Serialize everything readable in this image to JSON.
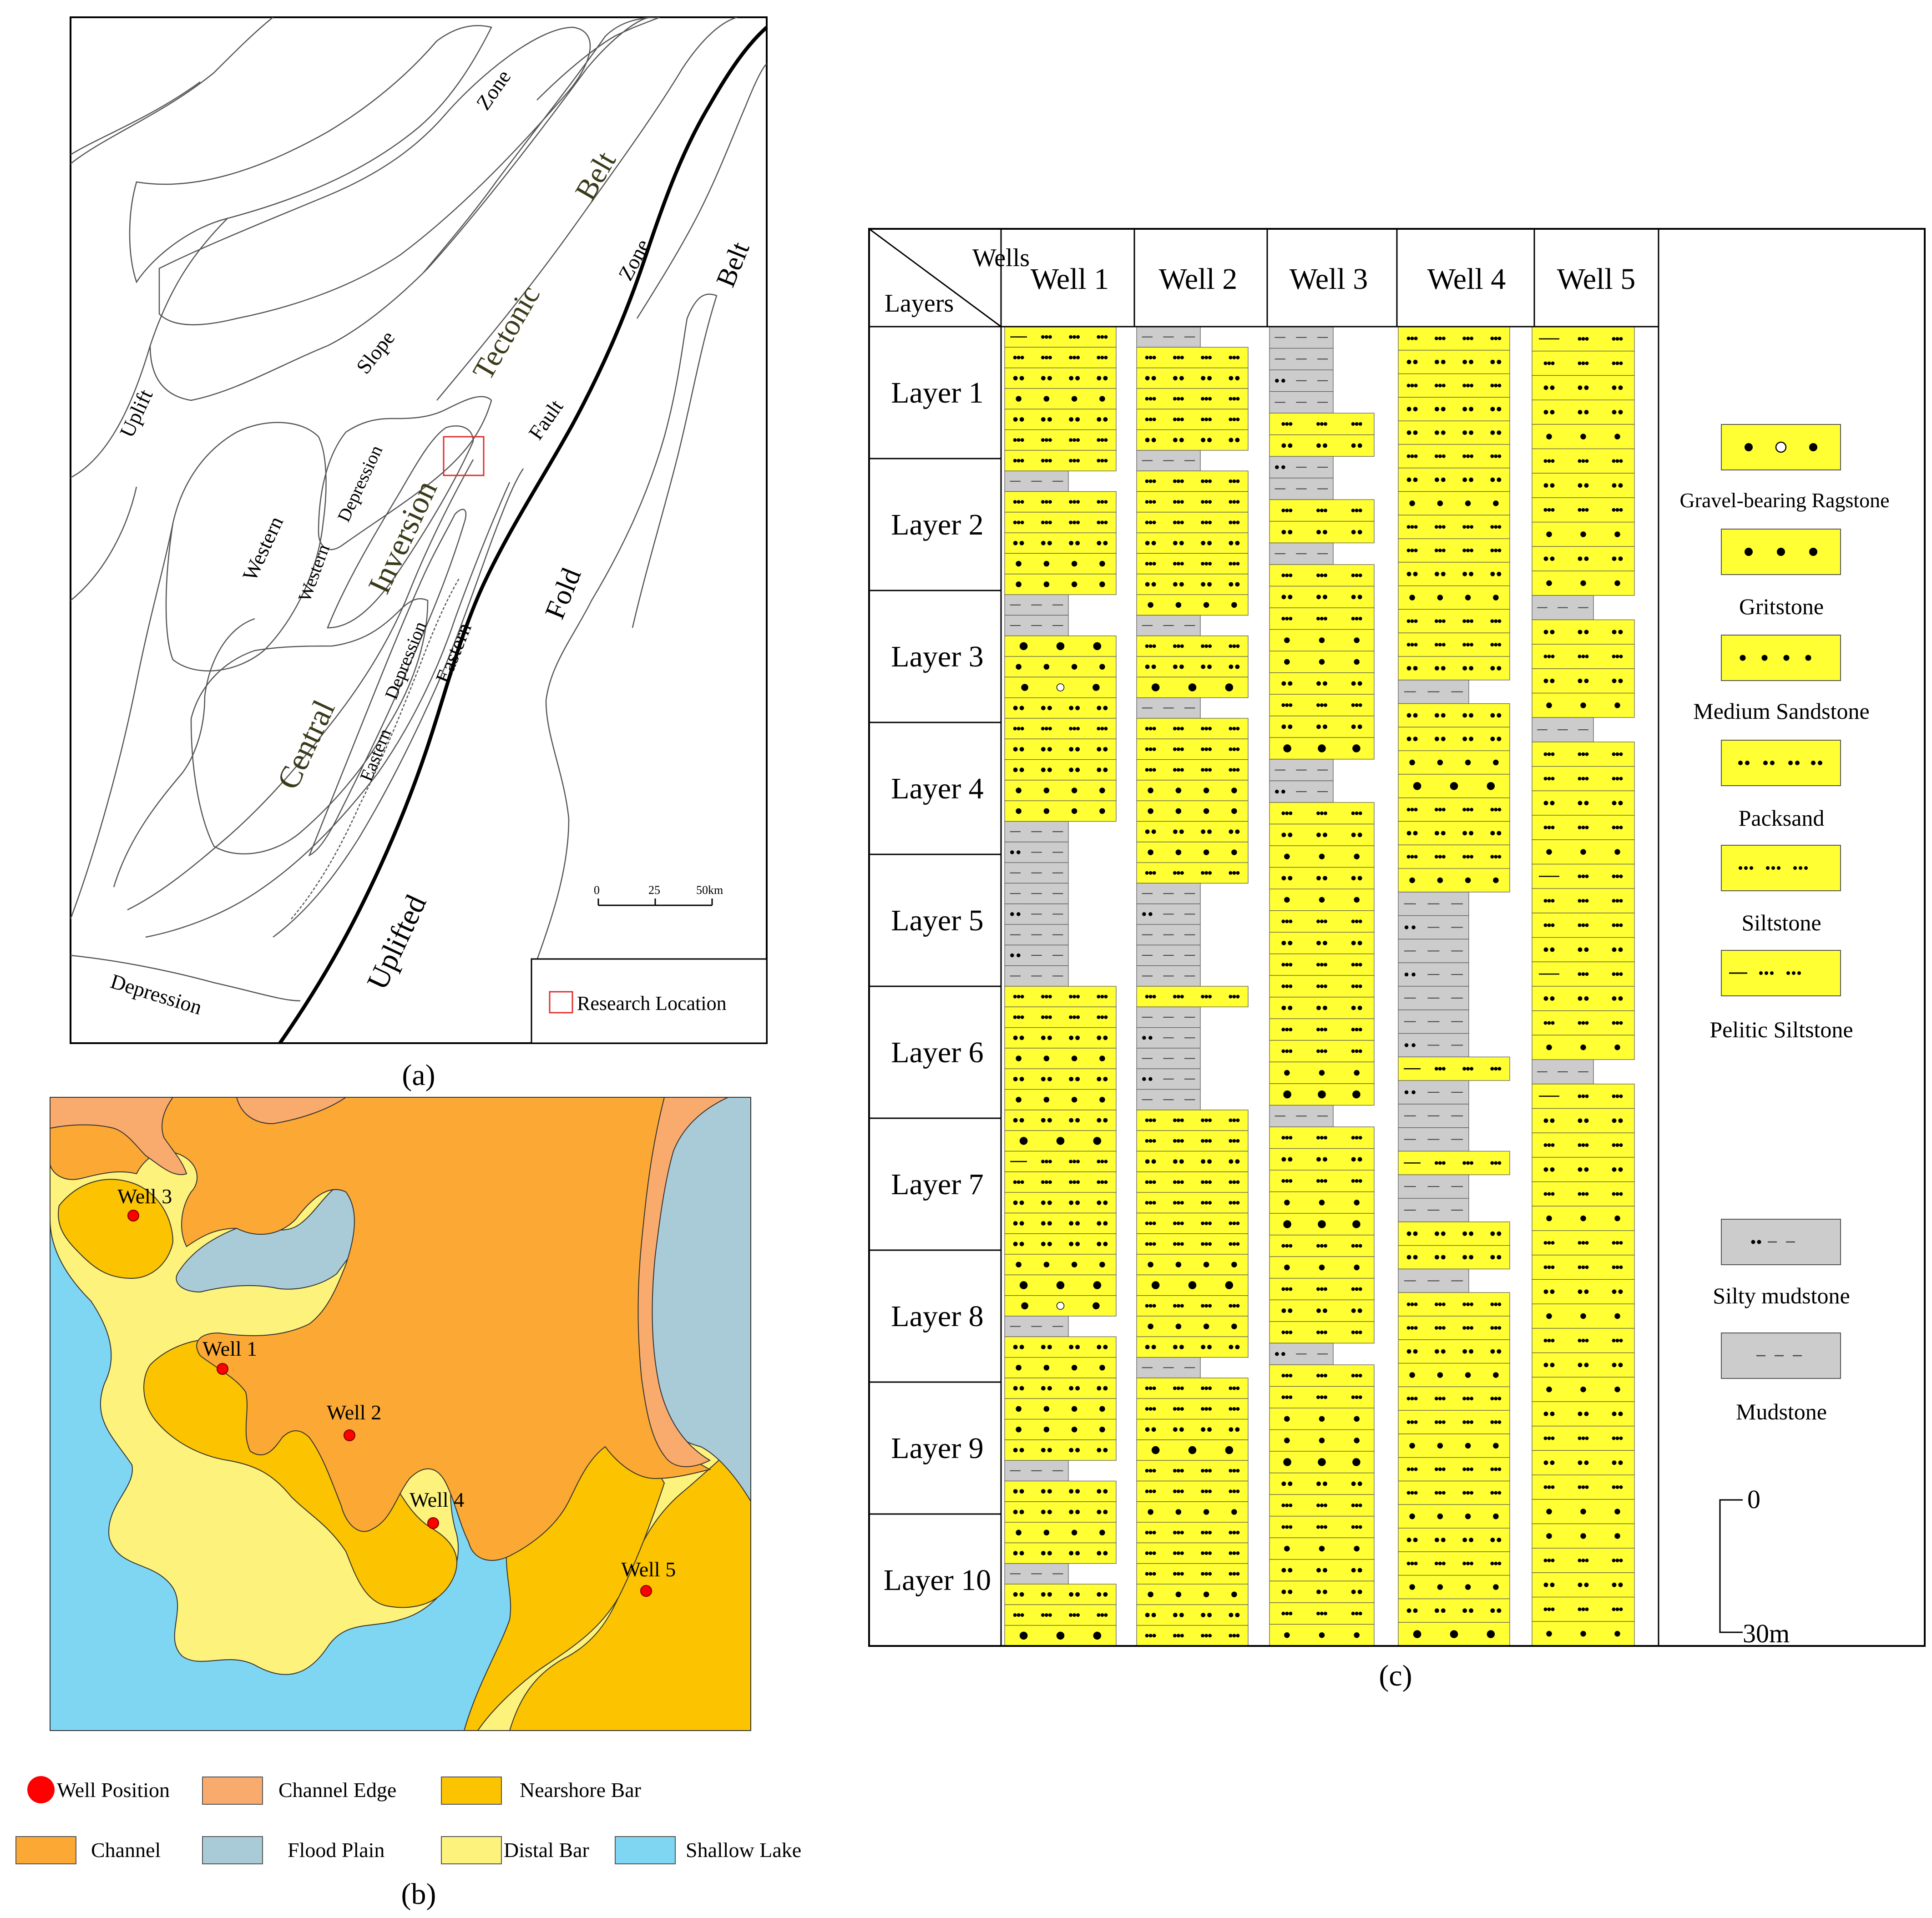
{
  "panel_a": {
    "caption": "(a)",
    "labels": {
      "zone_top": "Zone",
      "belt_top": "Belt",
      "tectonic": "Tectonic",
      "slope": "Slope",
      "uplift": "Uplift",
      "depression_w": "Depression",
      "western_inner": "Western",
      "western_outer": "Western",
      "inversion": "Inversion",
      "fault": "Fault",
      "zone_right": "Zone",
      "belt_right": "Belt",
      "fold": "Fold",
      "central": "Central",
      "eastern_outer": "Eastern",
      "depression_e": "Depression",
      "eastern_inner": "Eastern",
      "uplifted": "Uplifted",
      "depression_bottom": "Depression"
    },
    "scale": {
      "t0": "0",
      "t1": "25",
      "t2": "50km"
    },
    "legend": {
      "research_location": "Research Location"
    },
    "colors": {
      "line": "#555555",
      "fault": "#000000",
      "research_box": "#e03030"
    }
  },
  "panel_b": {
    "caption": "(b)",
    "wells": [
      "Well 3",
      "Well 1",
      "Well 2",
      "Well 4",
      "Well 5"
    ],
    "legend": [
      {
        "label": "Well Position",
        "color": "#ff0000",
        "kind": "dot"
      },
      {
        "label": "Channel Edge",
        "color": "#f9ab6e",
        "kind": "box"
      },
      {
        "label": "Nearshore Bar",
        "color": "#fbc300",
        "kind": "box"
      },
      {
        "label": "Channel",
        "color": "#fba934",
        "kind": "box"
      },
      {
        "label": "Flood Plain",
        "color": "#a9cbd8",
        "kind": "box"
      },
      {
        "label": "Distal Bar",
        "color": "#fdf27c",
        "kind": "box"
      },
      {
        "label": "Shallow Lake",
        "color": "#7fd6f3",
        "kind": "box"
      }
    ]
  },
  "panel_c": {
    "caption": "(c)",
    "header_wells": "Wells",
    "header_layers": "Layers",
    "wells": [
      "Well 1",
      "Well 2",
      "Well 3",
      "Well 4",
      "Well 5"
    ],
    "layers": [
      "Layer 1",
      "Layer 2",
      "Layer 3",
      "Layer 4",
      "Layer 5",
      "Layer 6",
      "Layer 7",
      "Layer 8",
      "Layer 9",
      "Layer 10"
    ],
    "legend": [
      {
        "label": "Gravel-bearing Ragstone",
        "pattern": "gravel"
      },
      {
        "label": "Gritstone",
        "pattern": "grit"
      },
      {
        "label": "Medium Sandstone",
        "pattern": "medium"
      },
      {
        "label": "Packsand",
        "pattern": "pack"
      },
      {
        "label": "Siltstone",
        "pattern": "silt"
      },
      {
        "label": "Pelitic Siltstone",
        "pattern": "pelitic"
      },
      {
        "label": "Silty mudstone",
        "pattern": "siltymud"
      },
      {
        "label": "Mudstone",
        "pattern": "mud"
      }
    ],
    "scale": {
      "top": "0",
      "bottom": "30m"
    },
    "colors": {
      "sand": "#ffff33",
      "mud": "#cccccc"
    }
  }
}
